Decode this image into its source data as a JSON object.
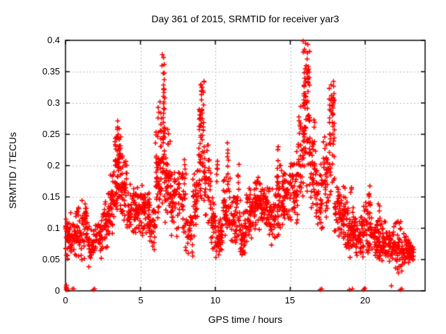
{
  "window": {
    "background": "#ffffff"
  },
  "chart_data": {
    "type": "scatter",
    "title": "Day 361 of 2015, SRMTID for receiver yar3",
    "xlabel": "GPS time / hours",
    "ylabel": "SRMTID / TECUs",
    "xlim": [
      0,
      24
    ],
    "ylim": [
      0,
      0.4
    ],
    "xticks": [
      0,
      5,
      10,
      15,
      20
    ],
    "yticks": [
      0,
      0.05,
      0.1,
      0.15,
      0.2,
      0.25,
      0.3,
      0.35,
      0.4
    ],
    "xtick_labels": [
      "0",
      "5",
      "10",
      "15",
      "20"
    ],
    "ytick_labels": [
      "0",
      "0.05",
      "0.1",
      "0.15",
      "0.2",
      "0.25",
      "0.3",
      "0.35",
      "0.4"
    ],
    "grid": true,
    "legend_position": "none",
    "marker": {
      "shape": "plus",
      "color": "#ff0000",
      "size": 7
    },
    "colors": {
      "grid": "#b4b4b4",
      "axis": "#000000",
      "text": "#000000",
      "background": "#ffffff"
    },
    "seed": 42,
    "note": "dense 30s-cadence scatter; bands/spikes are [t_start_h, t_end_h, y_low_TECU, y_high_TECU, n_points] envelopes read from the plot",
    "series_bands": [
      [
        0.0,
        0.5,
        0.04,
        0.13,
        45
      ],
      [
        0.5,
        1.0,
        0.05,
        0.14,
        40
      ],
      [
        1.0,
        1.5,
        0.04,
        0.15,
        40
      ],
      [
        1.5,
        2.0,
        0.035,
        0.11,
        35
      ],
      [
        2.0,
        2.5,
        0.05,
        0.12,
        35
      ],
      [
        2.5,
        3.0,
        0.06,
        0.16,
        40
      ],
      [
        3.0,
        3.3,
        0.08,
        0.2,
        30
      ],
      [
        3.3,
        3.7,
        0.1,
        0.27,
        55
      ],
      [
        3.7,
        4.1,
        0.09,
        0.22,
        40
      ],
      [
        4.1,
        4.6,
        0.08,
        0.18,
        40
      ],
      [
        4.6,
        5.1,
        0.09,
        0.17,
        45
      ],
      [
        5.1,
        5.6,
        0.08,
        0.18,
        45
      ],
      [
        5.6,
        6.0,
        0.05,
        0.16,
        35
      ],
      [
        6.0,
        6.3,
        0.1,
        0.25,
        35
      ],
      [
        6.3,
        6.65,
        0.12,
        0.33,
        45
      ],
      [
        6.65,
        7.0,
        0.1,
        0.26,
        40
      ],
      [
        7.0,
        7.5,
        0.08,
        0.2,
        40
      ],
      [
        7.5,
        8.0,
        0.06,
        0.22,
        35
      ],
      [
        8.0,
        8.5,
        0.05,
        0.14,
        30
      ],
      [
        8.5,
        8.9,
        0.08,
        0.22,
        35
      ],
      [
        8.9,
        9.25,
        0.12,
        0.33,
        50
      ],
      [
        9.25,
        9.7,
        0.1,
        0.25,
        40
      ],
      [
        9.7,
        10.1,
        0.05,
        0.15,
        35
      ],
      [
        10.1,
        10.5,
        0.04,
        0.12,
        40
      ],
      [
        10.5,
        11.0,
        0.06,
        0.2,
        45
      ],
      [
        11.0,
        11.5,
        0.07,
        0.17,
        40
      ],
      [
        11.5,
        12.0,
        0.04,
        0.15,
        40
      ],
      [
        12.0,
        12.5,
        0.07,
        0.17,
        45
      ],
      [
        12.5,
        13.0,
        0.09,
        0.19,
        45
      ],
      [
        13.0,
        13.5,
        0.09,
        0.17,
        45
      ],
      [
        13.5,
        14.0,
        0.06,
        0.17,
        40
      ],
      [
        14.0,
        14.5,
        0.08,
        0.21,
        45
      ],
      [
        14.5,
        15.0,
        0.1,
        0.2,
        45
      ],
      [
        15.0,
        15.5,
        0.1,
        0.23,
        45
      ],
      [
        15.5,
        15.9,
        0.12,
        0.3,
        40
      ],
      [
        15.9,
        16.3,
        0.15,
        0.4,
        50
      ],
      [
        16.3,
        16.7,
        0.12,
        0.28,
        40
      ],
      [
        16.7,
        17.2,
        0.09,
        0.22,
        40
      ],
      [
        17.2,
        17.6,
        0.1,
        0.25,
        35
      ],
      [
        17.6,
        17.95,
        0.12,
        0.33,
        40
      ],
      [
        17.95,
        18.4,
        0.08,
        0.18,
        40
      ],
      [
        18.4,
        18.9,
        0.06,
        0.15,
        40
      ],
      [
        18.9,
        19.4,
        0.05,
        0.13,
        50
      ],
      [
        19.4,
        19.9,
        0.05,
        0.13,
        45
      ],
      [
        19.9,
        20.4,
        0.05,
        0.16,
        45
      ],
      [
        20.4,
        20.9,
        0.05,
        0.13,
        45
      ],
      [
        20.9,
        21.4,
        0.04,
        0.12,
        45
      ],
      [
        21.4,
        21.9,
        0.04,
        0.11,
        40
      ],
      [
        21.9,
        22.4,
        0.02,
        0.12,
        40
      ],
      [
        22.4,
        22.9,
        0.03,
        0.1,
        40
      ],
      [
        22.9,
        23.25,
        0.04,
        0.09,
        30
      ]
    ],
    "series_spikes": [
      [
        3.35,
        3.6,
        0.2,
        0.275,
        16
      ],
      [
        6.0,
        6.3,
        0.2,
        0.3,
        10
      ],
      [
        6.35,
        6.6,
        0.26,
        0.385,
        20
      ],
      [
        8.95,
        9.25,
        0.24,
        0.335,
        14
      ],
      [
        9.0,
        9.15,
        0.3,
        0.335,
        4
      ],
      [
        15.85,
        16.2,
        0.28,
        0.4,
        18
      ],
      [
        16.05,
        16.3,
        0.34,
        0.395,
        8
      ],
      [
        17.65,
        17.9,
        0.24,
        0.335,
        12
      ],
      [
        10.05,
        10.2,
        0.17,
        0.235,
        6
      ],
      [
        10.75,
        10.95,
        0.17,
        0.24,
        7
      ],
      [
        11.45,
        11.6,
        0.14,
        0.22,
        6
      ],
      [
        12.85,
        13.05,
        0.14,
        0.19,
        6
      ],
      [
        14.1,
        14.3,
        0.16,
        0.25,
        8
      ],
      [
        7.85,
        8.05,
        0.14,
        0.22,
        7
      ],
      [
        5.15,
        5.35,
        0.13,
        0.19,
        6
      ],
      [
        2.85,
        3.0,
        0.11,
        0.16,
        5
      ],
      [
        1.25,
        1.4,
        0.1,
        0.15,
        5
      ],
      [
        18.55,
        18.75,
        0.12,
        0.17,
        6
      ],
      [
        19.0,
        19.2,
        0.12,
        0.165,
        5
      ],
      [
        20.15,
        20.35,
        0.12,
        0.17,
        6
      ],
      [
        20.85,
        21.05,
        0.11,
        0.15,
        5
      ]
    ],
    "zero_points": [
      [
        0.05,
        0.002
      ],
      [
        0.07,
        0.004
      ],
      [
        0.1,
        0.002
      ],
      [
        0.05,
        0.006
      ],
      [
        0.06,
        0.009
      ],
      [
        0.45,
        0.003
      ],
      [
        0.55,
        0.003
      ],
      [
        1.85,
        0.002
      ],
      [
        1.95,
        0.003
      ],
      [
        17.0,
        0.002
      ],
      [
        17.1,
        0.003
      ],
      [
        18.95,
        0.002
      ],
      [
        19.15,
        0.003
      ],
      [
        19.9,
        0.002
      ],
      [
        19.97,
        0.004
      ],
      [
        21.75,
        0.008
      ],
      [
        22.35,
        0.002
      ],
      [
        22.45,
        0.003
      ]
    ]
  }
}
